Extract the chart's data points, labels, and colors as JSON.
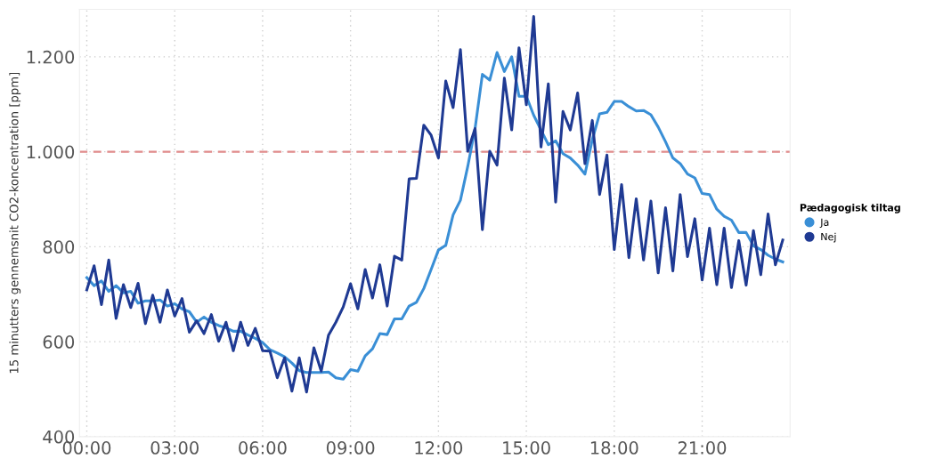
{
  "chart_data": {
    "type": "line",
    "ylabel": "15 minutters gennemsnit CO2-koncentration [ppm]",
    "legend_title": "Pædagogisk tiltag",
    "x": [
      0,
      0.25,
      0.5,
      0.75,
      1,
      1.25,
      1.5,
      1.75,
      2,
      2.25,
      2.5,
      2.75,
      3,
      3.25,
      3.5,
      3.75,
      4,
      4.25,
      4.5,
      4.75,
      5,
      5.25,
      5.5,
      5.75,
      6,
      6.25,
      6.5,
      6.75,
      7,
      7.25,
      7.5,
      7.75,
      8,
      8.25,
      8.5,
      8.75,
      9,
      9.25,
      9.5,
      9.75,
      10,
      10.25,
      10.5,
      10.75,
      11,
      11.25,
      11.5,
      11.75,
      12,
      12.25,
      12.5,
      12.75,
      13,
      13.25,
      13.5,
      13.75,
      14,
      14.25,
      14.5,
      14.75,
      15,
      15.25,
      15.5,
      15.75,
      16,
      16.25,
      16.5,
      16.75,
      17,
      17.25,
      17.5,
      17.75,
      18,
      18.25,
      18.5,
      18.75,
      19,
      19.25,
      19.5,
      19.75,
      20,
      20.25,
      20.5,
      20.75,
      21,
      21.25,
      21.5,
      21.75,
      22,
      22.25,
      22.5,
      22.75,
      23,
      23.25,
      23.5,
      23.75
    ],
    "series": [
      {
        "name": "Ja",
        "color": "#3a8fd6",
        "values": [
          735,
          718,
          728,
          706,
          718,
          703,
          706,
          681,
          686,
          686,
          688,
          675,
          680,
          669,
          663,
          641,
          652,
          641,
          634,
          629,
          622,
          622,
          614,
          607,
          598,
          583,
          576,
          568,
          555,
          539,
          535,
          535,
          535,
          536,
          524,
          521,
          541,
          538,
          570,
          585,
          617,
          615,
          648,
          648,
          675,
          683,
          712,
          752,
          793,
          803,
          867,
          898,
          969,
          1049,
          1163,
          1151,
          1209,
          1169,
          1200,
          1117,
          1117,
          1077,
          1046,
          1015,
          1023,
          996,
          987,
          972,
          953,
          1025,
          1080,
          1083,
          1106,
          1106,
          1095,
          1086,
          1087,
          1078,
          1052,
          1021,
          987,
          975,
          953,
          945,
          912,
          910,
          879,
          864,
          856,
          830,
          830,
          802,
          794,
          782,
          774,
          768
        ]
      },
      {
        "name": "Nej",
        "color": "#1f3a93",
        "values": [
          709,
          760,
          678,
          772,
          649,
          720,
          672,
          723,
          638,
          698,
          641,
          709,
          654,
          691,
          620,
          644,
          617,
          657,
          601,
          641,
          581,
          641,
          592,
          628,
          581,
          580,
          524,
          566,
          496,
          566,
          494,
          587,
          538,
          614,
          641,
          673,
          722,
          669,
          752,
          692,
          762,
          675,
          780,
          772,
          943,
          944,
          1056,
          1035,
          987,
          1149,
          1093,
          1215,
          1001,
          1049,
          836,
          1001,
          972,
          1155,
          1046,
          1219,
          1099,
          1285,
          1010,
          1143,
          894,
          1085,
          1046,
          1124,
          975,
          1066,
          910,
          993,
          794,
          931,
          777,
          901,
          772,
          896,
          745,
          882,
          749,
          910,
          779,
          859,
          730,
          839,
          720,
          839,
          714,
          813,
          719,
          834,
          741,
          869,
          762,
          814
        ]
      }
    ],
    "xlim": [
      -0.25,
      24
    ],
    "xticks": [
      {
        "value": 0,
        "label": "00:00"
      },
      {
        "value": 3,
        "label": "03:00"
      },
      {
        "value": 6,
        "label": "06:00"
      },
      {
        "value": 9,
        "label": "09:00"
      },
      {
        "value": 12,
        "label": "12:00"
      },
      {
        "value": 15,
        "label": "15:00"
      },
      {
        "value": 18,
        "label": "18:00"
      },
      {
        "value": 21,
        "label": "21:00"
      }
    ],
    "ylim": [
      400,
      1300
    ],
    "yticks": [
      400,
      600,
      800,
      {
        "value": 1000,
        "label": "1.000"
      },
      {
        "value": 1200,
        "label": "1.200"
      }
    ],
    "ref_lines": [
      {
        "axis": "y",
        "value": 1000,
        "color": "#e08a8a",
        "line_style": "dashed"
      }
    ],
    "grid": true,
    "legend": "right",
    "marker": "none",
    "line_style": "solid"
  }
}
